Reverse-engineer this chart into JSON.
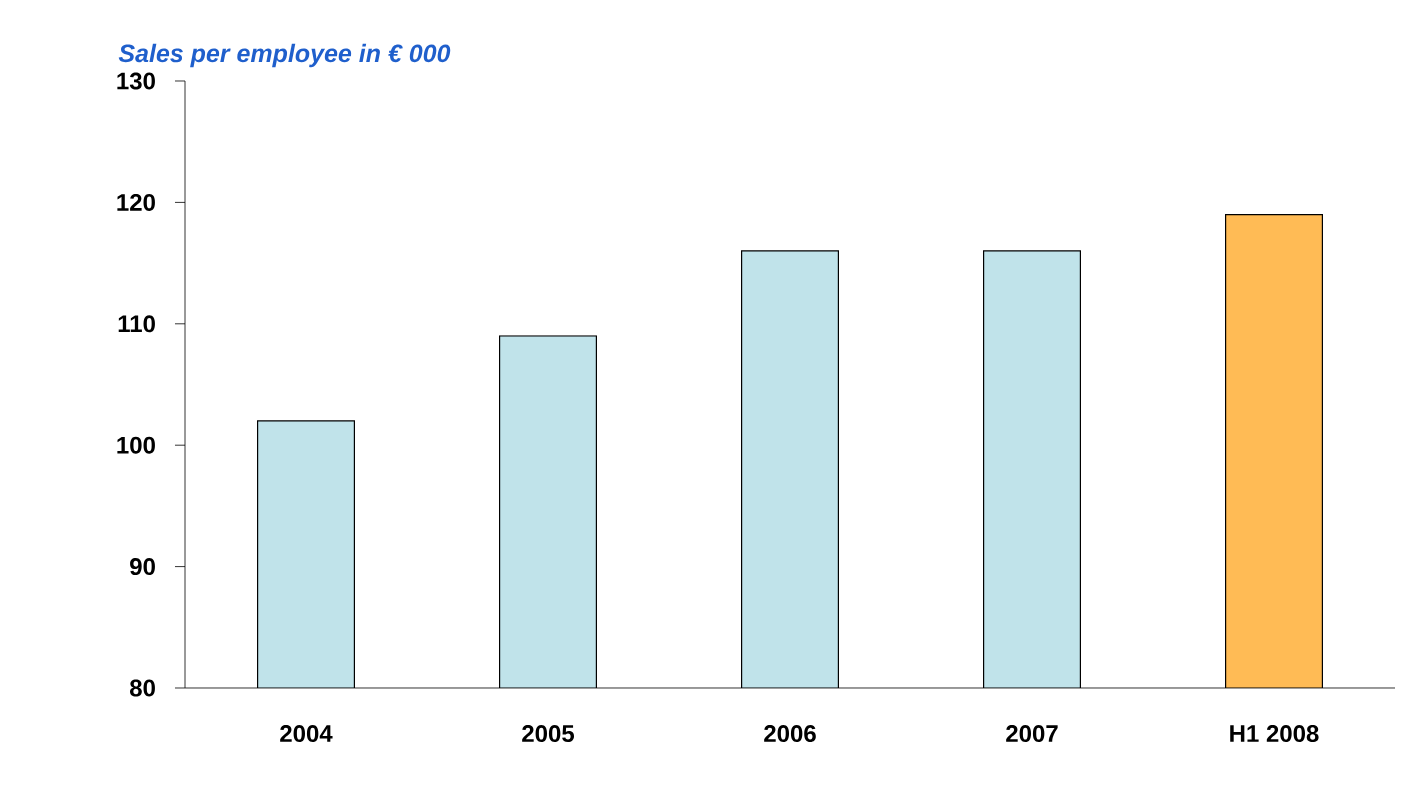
{
  "chart_data": {
    "type": "bar",
    "title": "Sales per employee in € 000",
    "categories": [
      "2004",
      "2005",
      "2006",
      "2007",
      "H1 2008"
    ],
    "values": [
      102,
      109,
      116,
      116,
      119
    ],
    "colors": [
      "#c0e3ea",
      "#c0e3ea",
      "#c0e3ea",
      "#c0e3ea",
      "#ffbb55"
    ],
    "ylim": [
      80,
      130
    ],
    "yticks": [
      80,
      90,
      100,
      110,
      120,
      130
    ]
  }
}
